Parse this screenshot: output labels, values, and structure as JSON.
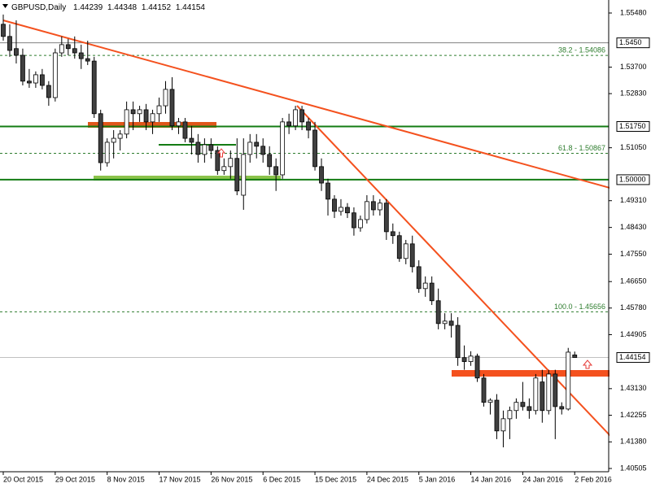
{
  "chart_data": {
    "type": "candlestick",
    "title": "GBPUSD,Daily",
    "categories": [
      "20 Oct 2015",
      null,
      null,
      null,
      null,
      null,
      null,
      null,
      "29 Oct 2015",
      null,
      null,
      null,
      null,
      null,
      null,
      null,
      "8 Nov 2015",
      null,
      null,
      null,
      null,
      null,
      null,
      null,
      "17 Nov 2015",
      null,
      null,
      null,
      null,
      null,
      null,
      null,
      "26 Nov 2015",
      null,
      null,
      null,
      null,
      null,
      null,
      null,
      "6 Dec 2015",
      null,
      null,
      null,
      null,
      null,
      null,
      null,
      "15 Dec 2015",
      null,
      null,
      null,
      null,
      null,
      null,
      null,
      "24 Dec 2015",
      null,
      null,
      null,
      null,
      null,
      null,
      null,
      "5 Jan 2016",
      null,
      null,
      null,
      null,
      null,
      null,
      null,
      "14 Jan 2016",
      null,
      null,
      null,
      null,
      null,
      null,
      null,
      "24 Jan 2016",
      null,
      null,
      null,
      null,
      null,
      null,
      null,
      "2 Feb 2016"
    ],
    "open": [
      1.5511,
      1.5471,
      1.5431,
      1.5409,
      1.5324,
      1.5318,
      1.5345,
      1.531,
      1.527,
      1.5417,
      1.5444,
      1.5431,
      1.5417,
      1.5398,
      1.539,
      1.5217,
      1.5056,
      1.5123,
      1.5136,
      1.515,
      1.523,
      1.5217,
      1.523,
      1.519,
      1.5217,
      1.5243,
      1.5297,
      1.5177,
      1.519,
      1.5136,
      1.5123,
      1.5083,
      1.5115,
      1.5096,
      1.503,
      1.5043,
      1.507,
      1.4949,
      1.5083,
      1.5123,
      1.511,
      1.5083,
      1.5043,
      1.5016,
      1.519,
      1.5177,
      1.523,
      1.519,
      1.5163,
      1.5043,
      1.4989,
      1.4936,
      1.4896,
      1.4909,
      1.4891,
      1.4842,
      1.4869,
      1.4928,
      1.4901,
      1.4923,
      1.4829,
      1.4816,
      1.4741,
      1.4789,
      1.4714,
      1.4642,
      1.466,
      1.4602,
      1.4527,
      1.4535,
      1.4521,
      1.4415,
      1.4402,
      1.442,
      1.4348,
      1.4268,
      1.4275,
      1.4174,
      1.4214,
      1.4241,
      1.4268,
      1.4254,
      1.4241,
      1.4335,
      1.4241,
      1.4361,
      1.4254,
      1.4246,
      1.44239
    ],
    "high": [
      1.5543,
      1.5511,
      1.5524,
      1.5431,
      1.5364,
      1.5356,
      1.5364,
      1.5324,
      1.5431,
      1.5471,
      1.5463,
      1.5471,
      1.5444,
      1.5457,
      1.5404,
      1.523,
      1.5136,
      1.5163,
      1.5163,
      1.5257,
      1.5257,
      1.5243,
      1.5249,
      1.523,
      1.527,
      1.5324,
      1.5337,
      1.5203,
      1.5203,
      1.5177,
      1.515,
      1.5136,
      1.5136,
      1.511,
      1.507,
      1.5096,
      1.5136,
      1.5136,
      1.515,
      1.515,
      1.5136,
      1.511,
      1.507,
      1.5203,
      1.5217,
      1.5243,
      1.5243,
      1.5203,
      1.519,
      1.507,
      1.5003,
      1.4949,
      1.4936,
      1.4923,
      1.4909,
      1.4882,
      1.4949,
      1.4949,
      1.4936,
      1.4936,
      1.4856,
      1.4829,
      1.4802,
      1.4816,
      1.4735,
      1.4682,
      1.4682,
      1.4642,
      1.4561,
      1.4561,
      1.4548,
      1.4455,
      1.4436,
      1.4428,
      1.4361,
      1.4281,
      1.4295,
      1.4241,
      1.4254,
      1.4281,
      1.4335,
      1.4281,
      1.4361,
      1.4375,
      1.4375,
      1.4375,
      1.4268,
      1.4447,
      1.44348
    ],
    "low": [
      1.5457,
      1.5404,
      1.5382,
      1.531,
      1.5302,
      1.5302,
      1.5297,
      1.5243,
      1.5257,
      1.5404,
      1.5409,
      1.5398,
      1.5364,
      1.5377,
      1.5203,
      1.503,
      1.5043,
      1.507,
      1.5096,
      1.5136,
      1.5163,
      1.519,
      1.5163,
      1.515,
      1.519,
      1.5217,
      1.5163,
      1.515,
      1.5123,
      1.5083,
      1.5056,
      1.5056,
      1.507,
      1.5016,
      1.5016,
      1.5003,
      1.4949,
      1.4901,
      1.5056,
      1.507,
      1.5056,
      1.5016,
      1.4963,
      1.5003,
      1.515,
      1.5163,
      1.5163,
      1.5136,
      1.503,
      1.4963,
      1.4882,
      1.4874,
      1.4882,
      1.4874,
      1.4816,
      1.4829,
      1.4856,
      1.4882,
      1.4882,
      1.4802,
      1.4789,
      1.473,
      1.4722,
      1.4695,
      1.4628,
      1.4615,
      1.4588,
      1.4508,
      1.4508,
      1.4481,
      1.4388,
      1.4375,
      1.4388,
      1.4335,
      1.4254,
      1.4228,
      1.4147,
      1.412,
      1.4147,
      1.4214,
      1.4241,
      1.4214,
      1.4228,
      1.4201,
      1.4228,
      1.4147,
      1.4228,
      1.4241,
      1.44152
    ],
    "close": [
      1.5471,
      1.5425,
      1.5409,
      1.5324,
      1.5318,
      1.5345,
      1.531,
      1.527,
      1.5417,
      1.5444,
      1.5431,
      1.5417,
      1.5398,
      1.539,
      1.5217,
      1.5056,
      1.5123,
      1.5136,
      1.515,
      1.523,
      1.5217,
      1.523,
      1.519,
      1.5217,
      1.5243,
      1.5297,
      1.5177,
      1.519,
      1.5136,
      1.5123,
      1.5083,
      1.5115,
      1.5096,
      1.503,
      1.5043,
      1.507,
      1.4963,
      1.5083,
      1.5123,
      1.511,
      1.5083,
      1.5043,
      1.5016,
      1.519,
      1.5177,
      1.523,
      1.519,
      1.5163,
      1.5043,
      1.4989,
      1.4936,
      1.4896,
      1.4909,
      1.4891,
      1.4842,
      1.4869,
      1.4928,
      1.4901,
      1.4923,
      1.4829,
      1.4816,
      1.4741,
      1.4789,
      1.4714,
      1.4642,
      1.466,
      1.4602,
      1.4527,
      1.4535,
      1.4521,
      1.4415,
      1.4402,
      1.442,
      1.4348,
      1.4268,
      1.4275,
      1.4174,
      1.4214,
      1.4241,
      1.4268,
      1.4254,
      1.4241,
      1.4348,
      1.4241,
      1.4361,
      1.4254,
      1.4246,
      1.4433,
      1.44154
    ],
    "up_color": "#ffffff",
    "down_color": "#404040",
    "ylim": [
      1.40398,
      1.55908
    ],
    "yticks": [
      {
        "value": 1.5548,
        "label": "1.55480"
      },
      {
        "value": 1.537,
        "label": "1.53700"
      },
      {
        "value": 1.5283,
        "label": "1.52830"
      },
      {
        "value": 1.5105,
        "label": "1.51050"
      },
      {
        "value": 1.4931,
        "label": "1.49310"
      },
      {
        "value": 1.4843,
        "label": "1.48430"
      },
      {
        "value": 1.4755,
        "label": "1.47550"
      },
      {
        "value": 1.4665,
        "label": "1.46650"
      },
      {
        "value": 1.4578,
        "label": "1.45780"
      },
      {
        "value": 1.44905,
        "label": "1.44905"
      },
      {
        "value": 1.4313,
        "label": "1.43130"
      },
      {
        "value": 1.42255,
        "label": "1.42255"
      },
      {
        "value": 1.4138,
        "label": "1.41380"
      },
      {
        "value": 1.40505,
        "label": "1.40505"
      }
    ],
    "levels": [
      {
        "value": 1.545,
        "label": "1.5450",
        "color": "#808080"
      },
      {
        "value": 1.5175,
        "label": "1.51750",
        "color": "#137c13"
      },
      {
        "value": 1.5,
        "label": "1.50000",
        "color": "#137c13"
      }
    ],
    "fib_levels": [
      {
        "value": 1.54086,
        "label": "38.2 - 1.54086"
      },
      {
        "value": 1.50867,
        "label": "61.8 - 1.50867"
      },
      {
        "value": 1.45656,
        "label": "100.0 - 1.45656"
      }
    ],
    "fib_color": "#2e7d2e"
  }
}
